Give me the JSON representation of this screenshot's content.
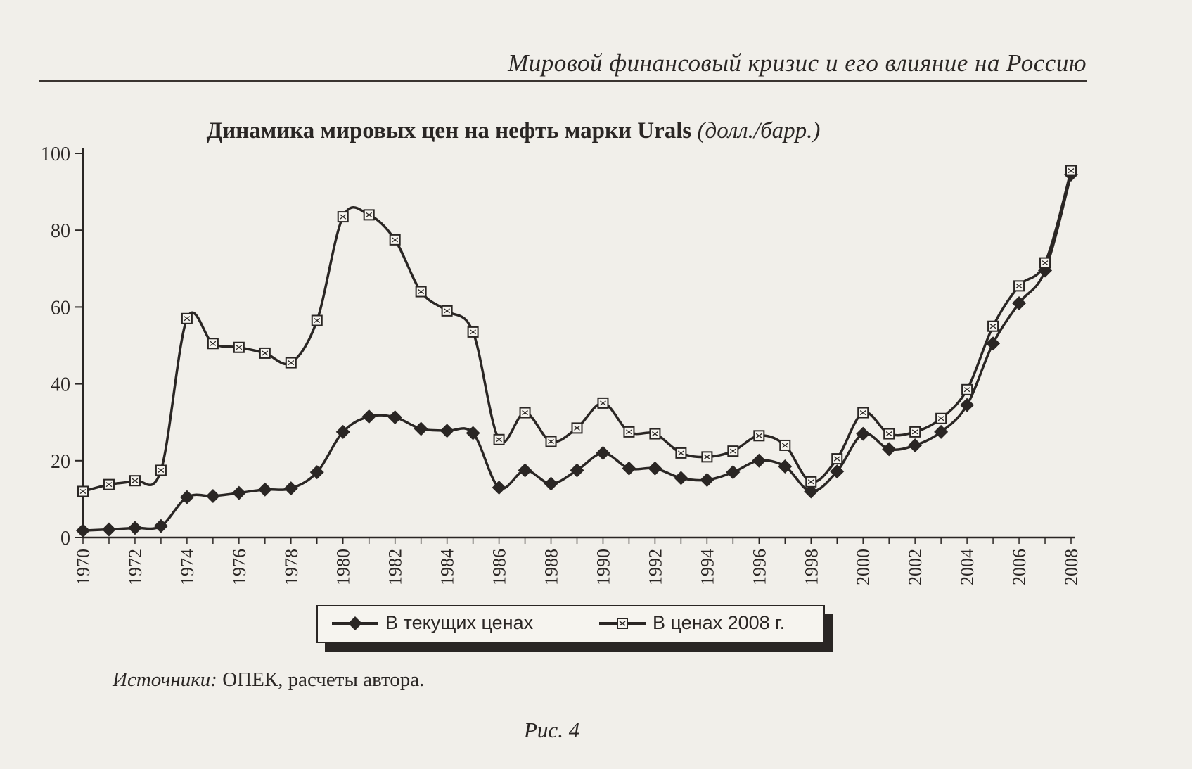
{
  "page": {
    "running_header": "Мировой финансовый кризис и его влияние на Россию",
    "sources_label": "Источники:",
    "sources_text": " ОПЕК, расчеты автора.",
    "figure_caption": "Рис. 4"
  },
  "chart_data": {
    "type": "line",
    "title": "Динамика мировых цен на нефть марки Urals",
    "title_unit": "(долл./барр.)",
    "xlabel": "",
    "ylabel": "",
    "ylim": [
      0,
      100
    ],
    "yticks": [
      0,
      20,
      40,
      60,
      80,
      100
    ],
    "x": [
      1970,
      1971,
      1972,
      1973,
      1974,
      1975,
      1976,
      1977,
      1978,
      1979,
      1980,
      1981,
      1982,
      1983,
      1984,
      1985,
      1986,
      1987,
      1988,
      1989,
      1990,
      1991,
      1992,
      1993,
      1994,
      1995,
      1996,
      1997,
      1998,
      1999,
      2000,
      2001,
      2002,
      2003,
      2004,
      2005,
      2006,
      2007,
      2008
    ],
    "xticks": [
      1970,
      1972,
      1974,
      1976,
      1978,
      1980,
      1982,
      1984,
      1986,
      1988,
      1990,
      1992,
      1994,
      1996,
      1998,
      2000,
      2002,
      2004,
      2006,
      2008
    ],
    "grid": false,
    "legend_position": "bottom",
    "series": [
      {
        "name": "В текущих ценах",
        "marker": "diamond",
        "values": [
          1.8,
          2.1,
          2.5,
          3.0,
          10.5,
          10.8,
          11.6,
          12.5,
          12.8,
          17.0,
          27.5,
          31.5,
          31.3,
          28.3,
          27.8,
          27.2,
          13.0,
          17.5,
          14.0,
          17.5,
          22.0,
          18.0,
          18.0,
          15.5,
          15.0,
          17.0,
          20.0,
          18.5,
          12.0,
          17.2,
          27.0,
          23.0,
          24.0,
          27.5,
          34.5,
          50.5,
          61.0,
          69.5,
          94.5
        ]
      },
      {
        "name": "В ценах 2008 г.",
        "marker": "square",
        "values": [
          12.0,
          13.8,
          14.8,
          17.5,
          57.0,
          50.5,
          49.5,
          48.0,
          45.5,
          56.5,
          83.5,
          84.0,
          77.5,
          64.0,
          59.0,
          53.5,
          25.5,
          32.5,
          25.0,
          28.5,
          35.0,
          27.5,
          27.0,
          22.0,
          21.0,
          22.5,
          26.5,
          24.0,
          14.5,
          20.5,
          32.5,
          27.0,
          27.5,
          31.0,
          38.5,
          55.0,
          65.5,
          71.5,
          95.5
        ]
      }
    ],
    "colors": {
      "line": "#2a2624",
      "background": "#f1efea"
    }
  }
}
